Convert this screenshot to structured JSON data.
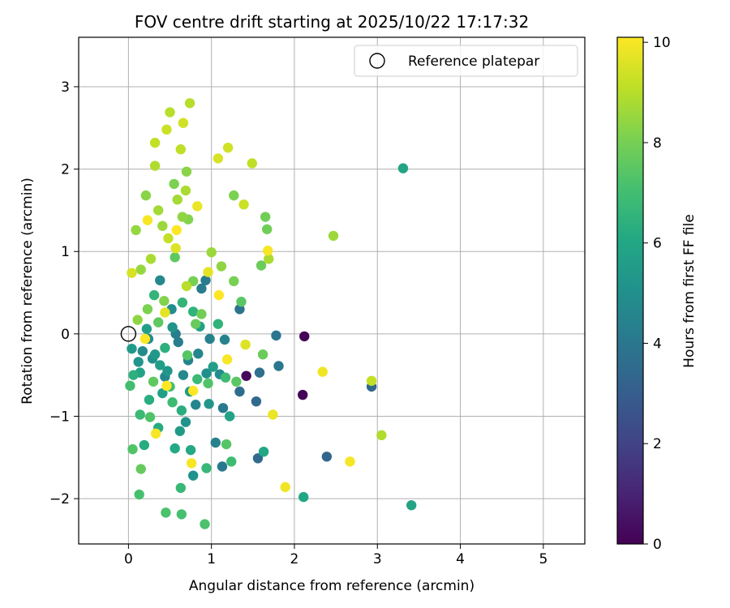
{
  "chart_data": {
    "type": "scatter",
    "title": "FOV centre drift starting at 2025/10/22 17:17:32",
    "xlabel": "Angular distance from reference (arcmin)",
    "ylabel": "Rotation from reference (arcmin)",
    "xlim": [
      -0.6,
      5.5
    ],
    "ylim": [
      -2.55,
      3.6
    ],
    "xticks": [
      0,
      1,
      2,
      3,
      4,
      5
    ],
    "xtick_labels": [
      "0",
      "1",
      "2",
      "3",
      "4",
      "5"
    ],
    "yticks": [
      -2,
      -1,
      0,
      1,
      2,
      3
    ],
    "ytick_labels": [
      "−2",
      "−1",
      "0",
      "1",
      "2",
      "3"
    ],
    "grid": true,
    "legend": {
      "label": "Reference platepar",
      "position": "top-right",
      "marker": "open-circle"
    },
    "reference_point": {
      "x": 0,
      "y": 0
    },
    "colorbar": {
      "label": "Hours from first FF file",
      "colormap": "viridis",
      "range": [
        0,
        10.1
      ],
      "ticks": [
        0,
        2,
        4,
        6,
        8,
        10
      ],
      "tick_labels": [
        "0",
        "2",
        "4",
        "6",
        "8",
        "10"
      ]
    },
    "points": [
      {
        "x": 2.12,
        "y": -0.03,
        "c": 0.1
      },
      {
        "x": 2.1,
        "y": -0.74,
        "c": 0.1
      },
      {
        "x": 1.42,
        "y": -0.51,
        "c": 0.2
      },
      {
        "x": 2.39,
        "y": -1.49,
        "c": 3.3
      },
      {
        "x": 2.93,
        "y": -0.64,
        "c": 3.4
      },
      {
        "x": 1.56,
        "y": -1.51,
        "c": 3.5
      },
      {
        "x": 1.54,
        "y": -0.82,
        "c": 3.5
      },
      {
        "x": 1.34,
        "y": -0.7,
        "c": 3.6
      },
      {
        "x": 1.58,
        "y": -0.47,
        "c": 3.7
      },
      {
        "x": 1.34,
        "y": 0.3,
        "c": 3.8
      },
      {
        "x": 1.78,
        "y": -0.02,
        "c": 3.9
      },
      {
        "x": 1.81,
        "y": -0.39,
        "c": 4.0
      },
      {
        "x": 1.13,
        "y": -1.61,
        "c": 4.1
      },
      {
        "x": 1.14,
        "y": -0.9,
        "c": 4.1
      },
      {
        "x": 0.93,
        "y": 0.65,
        "c": 4.2
      },
      {
        "x": 0.88,
        "y": 0.55,
        "c": 4.2
      },
      {
        "x": 0.57,
        "y": 0.0,
        "c": 4.3
      },
      {
        "x": 0.6,
        "y": -0.1,
        "c": 4.3
      },
      {
        "x": 1.05,
        "y": -1.32,
        "c": 4.4
      },
      {
        "x": 0.98,
        "y": -0.06,
        "c": 4.4
      },
      {
        "x": 1.16,
        "y": -0.07,
        "c": 4.5
      },
      {
        "x": 0.72,
        "y": -0.32,
        "c": 4.5
      },
      {
        "x": 0.81,
        "y": -0.86,
        "c": 4.6
      },
      {
        "x": 0.44,
        "y": -0.52,
        "c": 4.6
      },
      {
        "x": 0.38,
        "y": 0.65,
        "c": 4.7
      },
      {
        "x": 0.66,
        "y": -0.5,
        "c": 4.7
      },
      {
        "x": 0.24,
        "y": -0.06,
        "c": 4.8
      },
      {
        "x": 0.17,
        "y": -0.21,
        "c": 4.8
      },
      {
        "x": 1.1,
        "y": -0.49,
        "c": 4.9
      },
      {
        "x": 0.52,
        "y": 0.3,
        "c": 4.9
      },
      {
        "x": 0.94,
        "y": -0.48,
        "c": 5.0
      },
      {
        "x": 0.29,
        "y": -0.3,
        "c": 5.0
      },
      {
        "x": 0.78,
        "y": -1.72,
        "c": 5.1
      },
      {
        "x": 0.69,
        "y": -1.07,
        "c": 5.1
      },
      {
        "x": 0.12,
        "y": -0.34,
        "c": 5.2
      },
      {
        "x": 0.53,
        "y": 0.08,
        "c": 5.2
      },
      {
        "x": 0.97,
        "y": -0.85,
        "c": 5.3
      },
      {
        "x": 0.47,
        "y": -0.45,
        "c": 5.3
      },
      {
        "x": 0.04,
        "y": -0.18,
        "c": 5.4
      },
      {
        "x": 0.32,
        "y": -0.25,
        "c": 5.4
      },
      {
        "x": 0.74,
        "y": -0.7,
        "c": 5.5
      },
      {
        "x": 0.62,
        "y": -1.18,
        "c": 5.5
      },
      {
        "x": 1.02,
        "y": -0.4,
        "c": 5.6
      },
      {
        "x": 0.22,
        "y": 0.06,
        "c": 5.6
      },
      {
        "x": 0.86,
        "y": 0.09,
        "c": 5.7
      },
      {
        "x": 0.41,
        "y": -0.72,
        "c": 5.7
      },
      {
        "x": 0.14,
        "y": -0.47,
        "c": 5.8
      },
      {
        "x": 1.22,
        "y": -1.0,
        "c": 5.8
      },
      {
        "x": 3.31,
        "y": 2.01,
        "c": 5.9
      },
      {
        "x": 3.41,
        "y": -2.08,
        "c": 5.9
      },
      {
        "x": 2.11,
        "y": -1.98,
        "c": 6.0
      },
      {
        "x": 1.63,
        "y": -1.43,
        "c": 6.0
      },
      {
        "x": 0.75,
        "y": -1.41,
        "c": 6.1
      },
      {
        "x": 0.56,
        "y": -1.39,
        "c": 6.1
      },
      {
        "x": 0.36,
        "y": -1.14,
        "c": 6.2
      },
      {
        "x": 0.19,
        "y": -1.35,
        "c": 6.2
      },
      {
        "x": 0.64,
        "y": -0.93,
        "c": 6.3
      },
      {
        "x": 0.25,
        "y": -0.8,
        "c": 6.3
      },
      {
        "x": 0.06,
        "y": -0.5,
        "c": 6.4
      },
      {
        "x": 0.44,
        "y": -0.17,
        "c": 6.4
      },
      {
        "x": 0.78,
        "y": 0.27,
        "c": 6.5
      },
      {
        "x": 1.08,
        "y": 0.12,
        "c": 6.5
      },
      {
        "x": 0.31,
        "y": 0.47,
        "c": 6.6
      },
      {
        "x": 0.65,
        "y": 0.38,
        "c": 6.6
      },
      {
        "x": 0.94,
        "y": -1.63,
        "c": 6.7
      },
      {
        "x": 0.63,
        "y": -1.87,
        "c": 6.7
      },
      {
        "x": 0.14,
        "y": -0.98,
        "c": 6.8
      },
      {
        "x": 0.83,
        "y": -0.55,
        "c": 6.8
      },
      {
        "x": 1.24,
        "y": -1.55,
        "c": 6.9
      },
      {
        "x": 1.17,
        "y": -0.53,
        "c": 6.9
      },
      {
        "x": 0.02,
        "y": -0.63,
        "c": 7.0
      },
      {
        "x": 0.5,
        "y": -0.64,
        "c": 7.0
      },
      {
        "x": 0.13,
        "y": -1.95,
        "c": 7.1
      },
      {
        "x": 0.64,
        "y": -2.19,
        "c": 7.1
      },
      {
        "x": 0.45,
        "y": -2.17,
        "c": 7.2
      },
      {
        "x": 0.92,
        "y": -2.31,
        "c": 7.2
      },
      {
        "x": 0.05,
        "y": -1.4,
        "c": 7.3
      },
      {
        "x": 0.26,
        "y": -1.01,
        "c": 7.3
      },
      {
        "x": 0.71,
        "y": -0.26,
        "c": 7.4
      },
      {
        "x": 1.18,
        "y": -1.34,
        "c": 7.4
      },
      {
        "x": 1.36,
        "y": 0.39,
        "c": 7.5
      },
      {
        "x": 1.3,
        "y": -0.58,
        "c": 7.5
      },
      {
        "x": 0.56,
        "y": 0.93,
        "c": 7.6
      },
      {
        "x": 0.36,
        "y": 0.14,
        "c": 7.6
      },
      {
        "x": 0.15,
        "y": -1.64,
        "c": 7.7
      },
      {
        "x": 0.81,
        "y": 0.12,
        "c": 7.7
      },
      {
        "x": 1.6,
        "y": 0.83,
        "c": 7.8
      },
      {
        "x": 1.62,
        "y": -0.25,
        "c": 7.8
      },
      {
        "x": 1.65,
        "y": 1.42,
        "c": 7.9
      },
      {
        "x": 1.67,
        "y": 1.27,
        "c": 7.9
      },
      {
        "x": 1.27,
        "y": 0.64,
        "c": 8.0
      },
      {
        "x": 0.78,
        "y": 0.64,
        "c": 8.0
      },
      {
        "x": 1.27,
        "y": 1.68,
        "c": 8.1
      },
      {
        "x": 0.55,
        "y": 1.82,
        "c": 8.1
      },
      {
        "x": 0.43,
        "y": 0.4,
        "c": 8.2
      },
      {
        "x": 0.72,
        "y": 1.39,
        "c": 8.2
      },
      {
        "x": 0.7,
        "y": 1.97,
        "c": 8.3
      },
      {
        "x": 0.21,
        "y": 1.68,
        "c": 8.3
      },
      {
        "x": 1.12,
        "y": 0.82,
        "c": 8.4
      },
      {
        "x": 0.65,
        "y": 1.42,
        "c": 8.4
      },
      {
        "x": 0.09,
        "y": 1.26,
        "c": 8.5
      },
      {
        "x": 0.15,
        "y": 0.78,
        "c": 8.5
      },
      {
        "x": 0.41,
        "y": 1.31,
        "c": 8.6
      },
      {
        "x": 2.47,
        "y": 1.19,
        "c": 8.6
      },
      {
        "x": 0.36,
        "y": 1.5,
        "c": 8.7
      },
      {
        "x": 0.59,
        "y": 1.63,
        "c": 8.7
      },
      {
        "x": 0.69,
        "y": 1.74,
        "c": 8.8
      },
      {
        "x": 1.69,
        "y": 0.91,
        "c": 8.8
      },
      {
        "x": 0.32,
        "y": 2.04,
        "c": 8.9
      },
      {
        "x": 3.05,
        "y": -1.23,
        "c": 8.9
      },
      {
        "x": 0.5,
        "y": 2.69,
        "c": 9.0
      },
      {
        "x": 0.74,
        "y": 2.8,
        "c": 9.0
      },
      {
        "x": 1.49,
        "y": 2.07,
        "c": 9.1
      },
      {
        "x": 0.63,
        "y": 2.24,
        "c": 9.1
      },
      {
        "x": 0.32,
        "y": 2.32,
        "c": 9.2
      },
      {
        "x": 2.93,
        "y": -0.57,
        "c": 9.2
      },
      {
        "x": 1.39,
        "y": 1.57,
        "c": 9.3
      },
      {
        "x": 0.46,
        "y": 2.48,
        "c": 9.3
      },
      {
        "x": 1.2,
        "y": 2.26,
        "c": 9.4
      },
      {
        "x": 0.66,
        "y": 2.56,
        "c": 9.4
      },
      {
        "x": 0.04,
        "y": 0.74,
        "c": 9.5
      },
      {
        "x": 1.08,
        "y": 2.13,
        "c": 9.5
      },
      {
        "x": 1.41,
        "y": -0.13,
        "c": 9.6
      },
      {
        "x": 0.57,
        "y": 1.04,
        "c": 9.6
      },
      {
        "x": 0.44,
        "y": 0.26,
        "c": 9.7
      },
      {
        "x": 0.96,
        "y": 0.75,
        "c": 9.7
      },
      {
        "x": 0.83,
        "y": 1.55,
        "c": 9.8
      },
      {
        "x": 1.74,
        "y": -0.98,
        "c": 9.8
      },
      {
        "x": 1.89,
        "y": -1.86,
        "c": 9.9
      },
      {
        "x": 2.34,
        "y": -0.46,
        "c": 9.9
      },
      {
        "x": 2.67,
        "y": -1.55,
        "c": 10.0
      },
      {
        "x": 0.23,
        "y": 1.38,
        "c": 10.0
      },
      {
        "x": 0.33,
        "y": -1.21,
        "c": 10.0
      },
      {
        "x": 0.76,
        "y": -1.57,
        "c": 10.0
      },
      {
        "x": 1.19,
        "y": -0.31,
        "c": 10.0
      },
      {
        "x": 1.68,
        "y": 1.01,
        "c": 10.0
      },
      {
        "x": 0.46,
        "y": -0.63,
        "c": 10.1
      },
      {
        "x": 1.09,
        "y": 0.47,
        "c": 10.1
      },
      {
        "x": 0.2,
        "y": -0.06,
        "c": 10.1
      },
      {
        "x": 0.58,
        "y": 1.26,
        "c": 10.1
      },
      {
        "x": 0.78,
        "y": -0.69,
        "c": 10.1
      },
      {
        "x": 0.96,
        "y": -0.6,
        "c": 7.3
      },
      {
        "x": 0.38,
        "y": -0.38,
        "c": 5.6
      },
      {
        "x": 0.23,
        "y": 0.3,
        "c": 8.1
      },
      {
        "x": 0.84,
        "y": -0.24,
        "c": 4.6
      },
      {
        "x": 0.53,
        "y": -0.83,
        "c": 6.9
      },
      {
        "x": 0.3,
        "y": -0.58,
        "c": 7.6
      },
      {
        "x": 0.11,
        "y": 0.17,
        "c": 8.4
      },
      {
        "x": 0.7,
        "y": 0.58,
        "c": 9.0
      },
      {
        "x": 1.0,
        "y": 0.99,
        "c": 8.6
      },
      {
        "x": 0.48,
        "y": 1.16,
        "c": 9.2
      },
      {
        "x": 0.27,
        "y": 0.91,
        "c": 8.8
      },
      {
        "x": 0.88,
        "y": 0.24,
        "c": 7.9
      }
    ]
  }
}
